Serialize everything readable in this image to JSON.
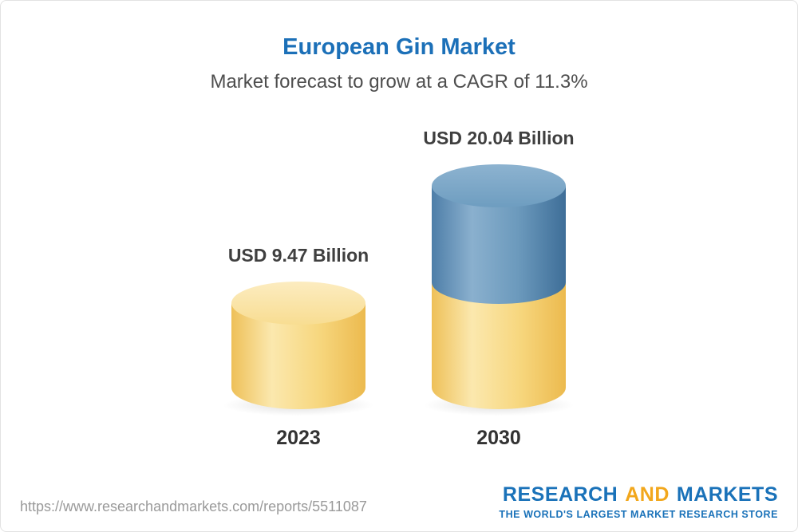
{
  "header": {
    "title": "European Gin Market",
    "subtitle": "Market forecast to grow at a CAGR of 11.3%"
  },
  "chart_data": {
    "type": "bar",
    "variant": "3d-cylinder",
    "title": "European Gin Market",
    "subtitle": "Market forecast to grow at a CAGR of 11.3%",
    "unit": "USD Billion",
    "cagr_percent": 11.3,
    "categories": [
      "2023",
      "2030"
    ],
    "values": [
      9.47,
      20.04
    ],
    "data_labels": [
      "USD 9.47 Billion",
      "USD 20.04 Billion"
    ],
    "bar_colors": [
      "#f3cf6f",
      "#4d7ea8"
    ],
    "notes": "2030 cylinder is stacked: gold base segment equal to the 2023 value with a blue growth segment on top",
    "legend_position": "none",
    "grid": false
  },
  "footer": {
    "url": "https://www.researchandmarkets.com/reports/5511087",
    "logo": {
      "word1": "RESEARCH",
      "word2": "AND",
      "word3": "MARKETS",
      "tagline": "THE WORLD'S LARGEST MARKET RESEARCH STORE",
      "blue": "#1a72b9",
      "gold": "#f2a71c"
    }
  }
}
